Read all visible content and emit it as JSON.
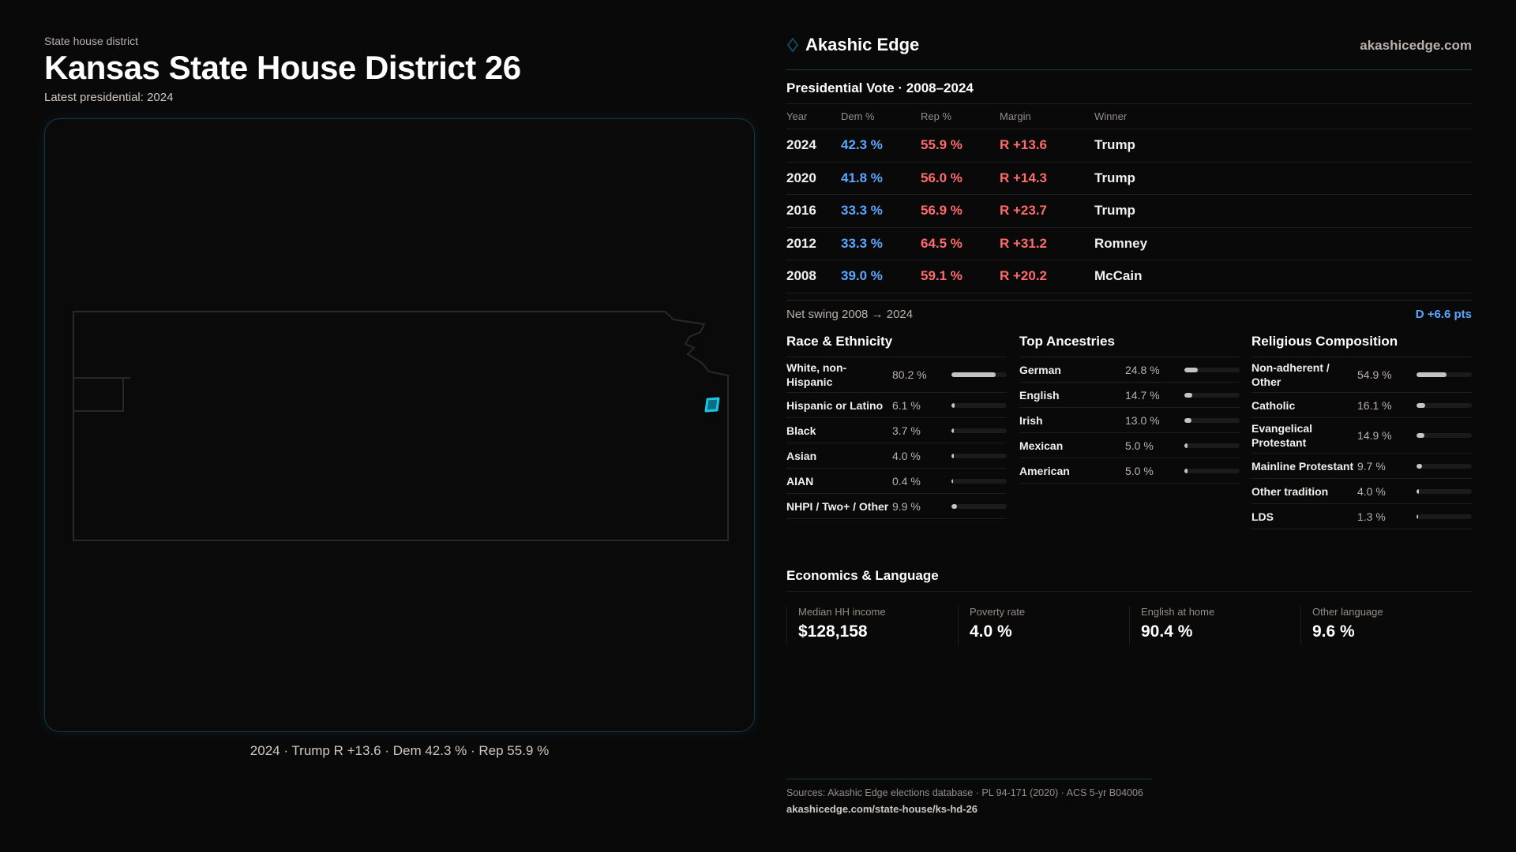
{
  "header": {
    "eyebrow": "State house district",
    "title": "Kansas State House District 26",
    "subtitle": "Latest presidential: 2024"
  },
  "map": {
    "caption": "2024 · Trump R +13.6 · Dem 42.3 % · Rep 55.9 %",
    "highlight_color": "#17c6e6",
    "outline_color": "#2a2728"
  },
  "brand": {
    "name": "Akashic Edge",
    "site": "akashicedge.com",
    "logo_icon": "diamond-outline-icon"
  },
  "presidential": {
    "title": "Presidential Vote · 2008–2024",
    "columns": [
      "Year",
      "Dem %",
      "Rep %",
      "Margin",
      "Winner"
    ],
    "rows": [
      {
        "year": "2024",
        "dem": "42.3 %",
        "rep": "55.9 %",
        "margin": "R +13.6",
        "winner": "Trump"
      },
      {
        "year": "2020",
        "dem": "41.8 %",
        "rep": "56.0 %",
        "margin": "R +14.3",
        "winner": "Trump"
      },
      {
        "year": "2016",
        "dem": "33.3 %",
        "rep": "56.9 %",
        "margin": "R +23.7",
        "winner": "Trump"
      },
      {
        "year": "2012",
        "dem": "33.3 %",
        "rep": "64.5 %",
        "margin": "R +31.2",
        "winner": "Romney"
      },
      {
        "year": "2008",
        "dem": "39.0 %",
        "rep": "59.1 %",
        "margin": "R +20.2",
        "winner": "McCain"
      }
    ],
    "swing_label": "Net swing 2008 → 2024",
    "swing_value": "D +6.6 pts",
    "dem_color": "#5aa7ff",
    "rep_color": "#ff6b6b"
  },
  "race": {
    "title": "Race & Ethnicity",
    "items": [
      {
        "label": "White, non-Hispanic",
        "value": "80.2 %",
        "pct": 80.2
      },
      {
        "label": "Hispanic or Latino",
        "value": "6.1 %",
        "pct": 6.1
      },
      {
        "label": "Black",
        "value": "3.7 %",
        "pct": 3.7
      },
      {
        "label": "Asian",
        "value": "4.0 %",
        "pct": 4.0
      },
      {
        "label": "AIAN",
        "value": "0.4 %",
        "pct": 0.4
      },
      {
        "label": "NHPI / Two+ / Other",
        "value": "9.9 %",
        "pct": 9.9
      }
    ]
  },
  "ancestry": {
    "title": "Top Ancestries",
    "items": [
      {
        "label": "German",
        "value": "24.8 %",
        "pct": 24.8
      },
      {
        "label": "English",
        "value": "14.7 %",
        "pct": 14.7
      },
      {
        "label": "Irish",
        "value": "13.0 %",
        "pct": 13.0
      },
      {
        "label": "Mexican",
        "value": "5.0 %",
        "pct": 5.0
      },
      {
        "label": "American",
        "value": "5.0 %",
        "pct": 5.0
      }
    ]
  },
  "religion": {
    "title": "Religious Composition",
    "items": [
      {
        "label": "Non-adherent / Other",
        "value": "54.9 %",
        "pct": 54.9
      },
      {
        "label": "Catholic",
        "value": "16.1 %",
        "pct": 16.1
      },
      {
        "label": "Evangelical Protestant",
        "value": "14.9 %",
        "pct": 14.9
      },
      {
        "label": "Mainline Protestant",
        "value": "9.7 %",
        "pct": 9.7
      },
      {
        "label": "Other tradition",
        "value": "4.0 %",
        "pct": 4.0
      },
      {
        "label": "LDS",
        "value": "1.3 %",
        "pct": 1.3
      }
    ]
  },
  "economics": {
    "title": "Economics & Language",
    "stats": [
      {
        "label": "Median HH income",
        "value": "$128,158"
      },
      {
        "label": "Poverty rate",
        "value": "4.0 %"
      },
      {
        "label": "English at home",
        "value": "90.4 %"
      },
      {
        "label": "Other language",
        "value": "9.6 %"
      }
    ]
  },
  "footer": {
    "sources": "Sources: Akashic Edge elections database · PL 94-171 (2020) · ACS 5-yr B04006",
    "url": "akashicedge.com/state-house/ks-hd-26"
  }
}
